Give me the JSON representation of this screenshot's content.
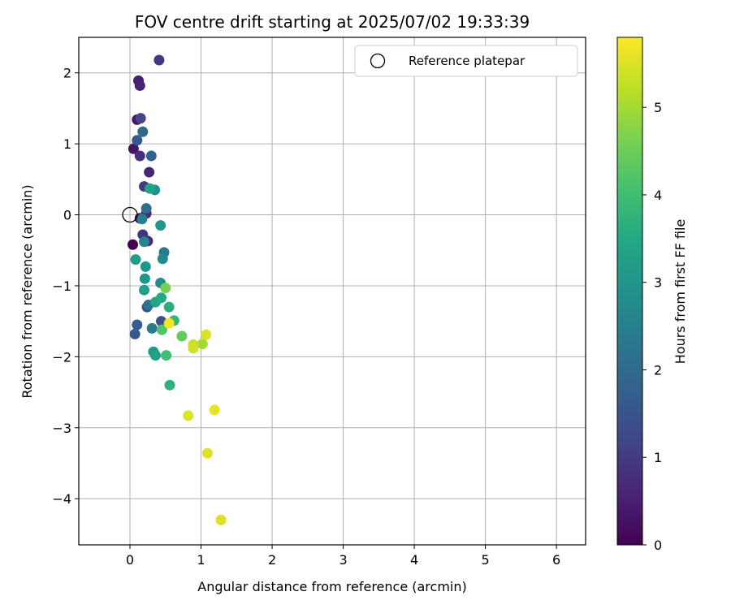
{
  "chart_data": {
    "type": "scatter",
    "title": "FOV centre drift starting at 2025/07/02 19:33:39",
    "xlabel": "Angular distance from reference (arcmin)",
    "ylabel": "Rotation from reference (arcmin)",
    "xlim": [
      -0.72,
      6.41
    ],
    "ylim": [
      -4.65,
      2.5
    ],
    "xticks": [
      0,
      1,
      2,
      3,
      4,
      5,
      6
    ],
    "yticks": [
      2,
      1,
      0,
      -1,
      -2,
      -3,
      -4
    ],
    "xtick_labels": [
      "0",
      "1",
      "2",
      "3",
      "4",
      "5",
      "6"
    ],
    "ytick_labels": [
      "2",
      "1",
      "0",
      "−1",
      "−2",
      "−3",
      "−4"
    ],
    "grid": true,
    "legend": {
      "position": "top-right",
      "entries": [
        "Reference platepar"
      ]
    },
    "reference_point": {
      "x": 0,
      "y": 0
    },
    "colorbar": {
      "label": "Hours from first FF file",
      "colormap": "viridis",
      "range": [
        0,
        5.8
      ],
      "ticks": [
        0,
        1,
        2,
        3,
        4,
        5
      ],
      "tick_labels": [
        "0",
        "1",
        "2",
        "3",
        "4",
        "5"
      ]
    },
    "points": [
      {
        "x": 0.04,
        "y": -0.42,
        "t": 0.0
      },
      {
        "x": 0.14,
        "y": -0.05,
        "t": 0.2
      },
      {
        "x": 0.05,
        "y": 0.93,
        "t": 0.3
      },
      {
        "x": 0.1,
        "y": 1.34,
        "t": 0.4
      },
      {
        "x": 0.12,
        "y": 1.89,
        "t": 0.5
      },
      {
        "x": 0.14,
        "y": 1.82,
        "t": 0.55
      },
      {
        "x": 0.27,
        "y": 0.6,
        "t": 0.6
      },
      {
        "x": 0.23,
        "y": 0.02,
        "t": 0.65
      },
      {
        "x": 0.25,
        "y": -0.37,
        "t": 0.7
      },
      {
        "x": 0.14,
        "y": 0.83,
        "t": 0.8
      },
      {
        "x": 0.18,
        "y": -0.28,
        "t": 0.85
      },
      {
        "x": 0.41,
        "y": 2.18,
        "t": 0.9
      },
      {
        "x": 0.2,
        "y": 0.4,
        "t": 1.0
      },
      {
        "x": 0.15,
        "y": 1.36,
        "t": 1.2
      },
      {
        "x": 0.24,
        "y": -1.3,
        "t": 1.3
      },
      {
        "x": 0.44,
        "y": -1.5,
        "t": 1.4
      },
      {
        "x": 0.1,
        "y": 1.05,
        "t": 1.6
      },
      {
        "x": 0.07,
        "y": -1.68,
        "t": 1.6
      },
      {
        "x": 0.1,
        "y": -1.55,
        "t": 1.7
      },
      {
        "x": 0.3,
        "y": 0.83,
        "t": 1.8
      },
      {
        "x": 0.18,
        "y": 1.17,
        "t": 2.0
      },
      {
        "x": 0.23,
        "y": 0.09,
        "t": 2.1
      },
      {
        "x": 0.26,
        "y": -1.27,
        "t": 2.2
      },
      {
        "x": 0.48,
        "y": -0.53,
        "t": 2.3
      },
      {
        "x": 0.31,
        "y": -1.6,
        "t": 2.4
      },
      {
        "x": 0.17,
        "y": -0.06,
        "t": 2.5
      },
      {
        "x": 0.2,
        "y": -0.38,
        "t": 2.6
      },
      {
        "x": 0.46,
        "y": -0.62,
        "t": 2.7
      },
      {
        "x": 0.43,
        "y": -0.96,
        "t": 2.8
      },
      {
        "x": 0.35,
        "y": 0.35,
        "t": 2.9
      },
      {
        "x": 0.22,
        "y": -0.73,
        "t": 3.0
      },
      {
        "x": 0.21,
        "y": -0.9,
        "t": 3.0
      },
      {
        "x": 0.43,
        "y": -0.15,
        "t": 3.1
      },
      {
        "x": 0.33,
        "y": -1.93,
        "t": 3.1
      },
      {
        "x": 0.08,
        "y": -0.63,
        "t": 3.2
      },
      {
        "x": 0.2,
        "y": -1.06,
        "t": 3.2
      },
      {
        "x": 0.36,
        "y": -1.98,
        "t": 3.3
      },
      {
        "x": 0.28,
        "y": 0.37,
        "t": 3.3
      },
      {
        "x": 0.36,
        "y": -1.23,
        "t": 3.4
      },
      {
        "x": 0.44,
        "y": -1.17,
        "t": 3.5
      },
      {
        "x": 0.55,
        "y": -1.3,
        "t": 3.6
      },
      {
        "x": 0.56,
        "y": -2.4,
        "t": 3.7
      },
      {
        "x": 0.62,
        "y": -1.49,
        "t": 3.8
      },
      {
        "x": 0.51,
        "y": -1.98,
        "t": 4.0
      },
      {
        "x": 0.45,
        "y": -1.62,
        "t": 4.2
      },
      {
        "x": 0.73,
        "y": -1.71,
        "t": 4.4
      },
      {
        "x": 0.5,
        "y": -1.03,
        "t": 4.6
      },
      {
        "x": 1.02,
        "y": -1.82,
        "t": 5.0
      },
      {
        "x": 0.89,
        "y": -1.83,
        "t": 5.3
      },
      {
        "x": 0.89,
        "y": -1.88,
        "t": 5.4
      },
      {
        "x": 1.07,
        "y": -1.69,
        "t": 5.5
      },
      {
        "x": 0.82,
        "y": -2.83,
        "t": 5.5
      },
      {
        "x": 1.19,
        "y": -2.75,
        "t": 5.6
      },
      {
        "x": 1.09,
        "y": -3.36,
        "t": 5.5
      },
      {
        "x": 1.28,
        "y": -4.3,
        "t": 5.5
      },
      {
        "x": 0.55,
        "y": -1.53,
        "t": 5.7
      }
    ]
  }
}
